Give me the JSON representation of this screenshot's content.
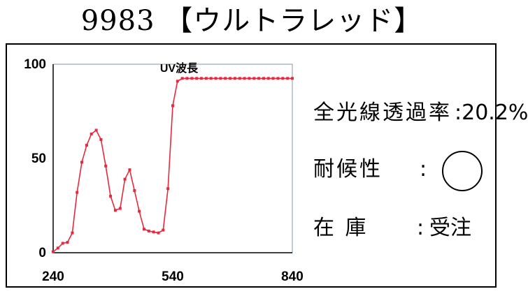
{
  "header": {
    "title": "9983 【ウルトラレッド】"
  },
  "chart_data": {
    "type": "line",
    "title": "UV波長",
    "xlabel": "",
    "ylabel": "",
    "xlim": [
      240,
      840
    ],
    "ylim": [
      0,
      100
    ],
    "x_ticks": [
      "240",
      "540",
      "840"
    ],
    "y_ticks": [
      "100",
      "50",
      "0"
    ],
    "grid": false,
    "color": "#e8283c",
    "series": [
      {
        "x": [
          240,
          252,
          264,
          276,
          288,
          300,
          312,
          324,
          336,
          348,
          360,
          372,
          384,
          396,
          408,
          420,
          432,
          444,
          456,
          468,
          480,
          492,
          504,
          516,
          528,
          540,
          552,
          564,
          576,
          588,
          600,
          612,
          624,
          636,
          648,
          660,
          672,
          684,
          696,
          708,
          720,
          732,
          744,
          756,
          768,
          780,
          792,
          804,
          816,
          828,
          840
        ],
        "y": [
          0.5,
          2.5,
          5,
          5.5,
          10.5,
          32,
          48,
          57,
          63,
          65,
          60,
          46,
          30,
          22.5,
          23.5,
          39,
          44,
          33,
          22,
          12.5,
          11.5,
          11,
          10.5,
          12,
          34,
          78,
          91,
          92.5,
          92.5,
          92.5,
          92.5,
          92.5,
          92.5,
          92.5,
          92.5,
          92.5,
          92.5,
          92.5,
          92.5,
          92.5,
          92.5,
          92.5,
          92.5,
          92.5,
          92.5,
          92.5,
          92.5,
          92.5,
          92.5,
          92.5,
          92.5
        ]
      }
    ]
  },
  "info": {
    "transmittance": {
      "label": "全光線透過率",
      "sep": ":",
      "value": "20.2%"
    },
    "durability": {
      "label": "耐候性",
      "sep": ":",
      "value": "◯"
    },
    "stock": {
      "label": "在 庫",
      "sep": ":",
      "value": "受注"
    }
  }
}
